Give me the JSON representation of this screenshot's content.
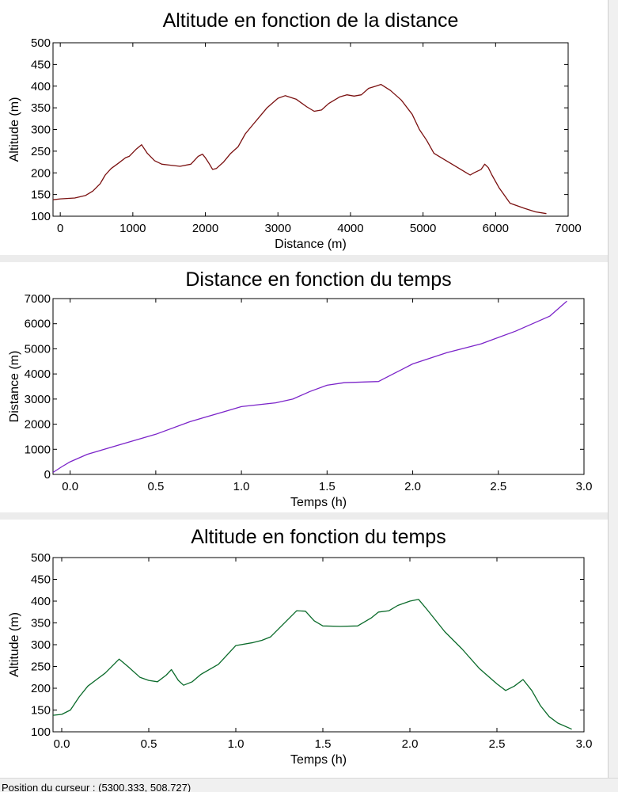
{
  "status_bar": {
    "text": "Position du curseur : (5300.333, 508.727)"
  },
  "chart_data": [
    {
      "type": "line",
      "title": "Altitude en fonction de la distance",
      "xlabel": "Distance (m)",
      "ylabel": "Altitude (m)",
      "xlim": [
        -100,
        7000
      ],
      "ylim": [
        100,
        500
      ],
      "xticks": [
        "0",
        "1000",
        "2000",
        "3000",
        "4000",
        "5000",
        "6000",
        "7000"
      ],
      "yticks": [
        "100",
        "150",
        "200",
        "250",
        "300",
        "350",
        "400",
        "450",
        "500"
      ],
      "grid": false,
      "color": "#7a1010",
      "series": [
        {
          "x": [
            -100,
            0,
            200,
            350,
            450,
            550,
            620,
            700,
            800,
            900,
            950,
            1050,
            1120,
            1200,
            1300,
            1400,
            1500,
            1650,
            1800,
            1900,
            1960,
            2000,
            2050,
            2100,
            2150,
            2250,
            2350,
            2450,
            2550,
            2650,
            2750,
            2850,
            3000,
            3100,
            3250,
            3400,
            3500,
            3600,
            3700,
            3850,
            3950,
            4050,
            4150,
            4250,
            4350,
            4420,
            4550,
            4700,
            4850,
            4950,
            5050,
            5150,
            5300,
            5400,
            5500,
            5600,
            5650,
            5700,
            5800,
            5850,
            5900,
            5950,
            6050,
            6200,
            6400,
            6550,
            6700
          ],
          "y": [
            138,
            140,
            142,
            148,
            158,
            175,
            195,
            210,
            222,
            235,
            238,
            255,
            265,
            245,
            228,
            220,
            218,
            215,
            220,
            238,
            243,
            235,
            222,
            208,
            210,
            225,
            245,
            260,
            290,
            310,
            330,
            350,
            372,
            378,
            370,
            352,
            342,
            345,
            360,
            375,
            380,
            377,
            380,
            395,
            400,
            404,
            390,
            368,
            335,
            300,
            275,
            245,
            230,
            220,
            210,
            200,
            195,
            200,
            208,
            220,
            212,
            195,
            165,
            130,
            118,
            110,
            106
          ]
        }
      ]
    },
    {
      "type": "line",
      "title": "Distance en fonction du temps",
      "xlabel": "Temps (h)",
      "ylabel": "Distance (m)",
      "xlim": [
        -0.1,
        3.0
      ],
      "ylim": [
        0,
        7000
      ],
      "xticks": [
        "0.0",
        "0.5",
        "1.0",
        "1.5",
        "2.0",
        "2.5",
        "3.0"
      ],
      "yticks": [
        "0",
        "1000",
        "2000",
        "3000",
        "4000",
        "5000",
        "6000",
        "7000"
      ],
      "grid": false,
      "color": "#7b24c9",
      "series": [
        {
          "x": [
            -0.1,
            -0.05,
            0.0,
            0.1,
            0.3,
            0.5,
            0.7,
            0.9,
            1.0,
            1.2,
            1.3,
            1.4,
            1.5,
            1.6,
            1.8,
            1.9,
            2.0,
            2.2,
            2.4,
            2.6,
            2.8,
            2.9
          ],
          "y": [
            80,
            300,
            500,
            800,
            1200,
            1600,
            2100,
            2500,
            2700,
            2850,
            3000,
            3300,
            3550,
            3650,
            3700,
            4050,
            4400,
            4850,
            5200,
            5700,
            6300,
            6900
          ]
        }
      ]
    },
    {
      "type": "line",
      "title": "Altitude en fonction du temps",
      "xlabel": "Temps (h)",
      "ylabel": "Altitude (m)",
      "xlim": [
        -0.05,
        3.0
      ],
      "ylim": [
        100,
        500
      ],
      "xticks": [
        "0.0",
        "0.5",
        "1.0",
        "1.5",
        "2.0",
        "2.5",
        "3.0"
      ],
      "yticks": [
        "100",
        "150",
        "200",
        "250",
        "300",
        "350",
        "400",
        "450",
        "500"
      ],
      "grid": false,
      "color": "#0a6a2a",
      "series": [
        {
          "x": [
            -0.05,
            0.0,
            0.05,
            0.1,
            0.15,
            0.2,
            0.25,
            0.3,
            0.33,
            0.38,
            0.45,
            0.5,
            0.55,
            0.6,
            0.63,
            0.67,
            0.7,
            0.75,
            0.8,
            0.9,
            1.0,
            1.1,
            1.15,
            1.2,
            1.3,
            1.35,
            1.4,
            1.45,
            1.5,
            1.6,
            1.7,
            1.78,
            1.82,
            1.88,
            1.93,
            2.0,
            2.05,
            2.1,
            2.2,
            2.3,
            2.4,
            2.5,
            2.55,
            2.6,
            2.65,
            2.7,
            2.75,
            2.8,
            2.85,
            2.93
          ],
          "y": [
            138,
            140,
            150,
            180,
            205,
            220,
            235,
            255,
            267,
            250,
            225,
            218,
            215,
            230,
            243,
            218,
            207,
            215,
            232,
            255,
            298,
            305,
            310,
            318,
            358,
            378,
            377,
            355,
            343,
            342,
            343,
            362,
            375,
            378,
            390,
            400,
            404,
            380,
            330,
            290,
            245,
            210,
            195,
            205,
            220,
            195,
            160,
            135,
            120,
            106
          ]
        }
      ]
    }
  ]
}
